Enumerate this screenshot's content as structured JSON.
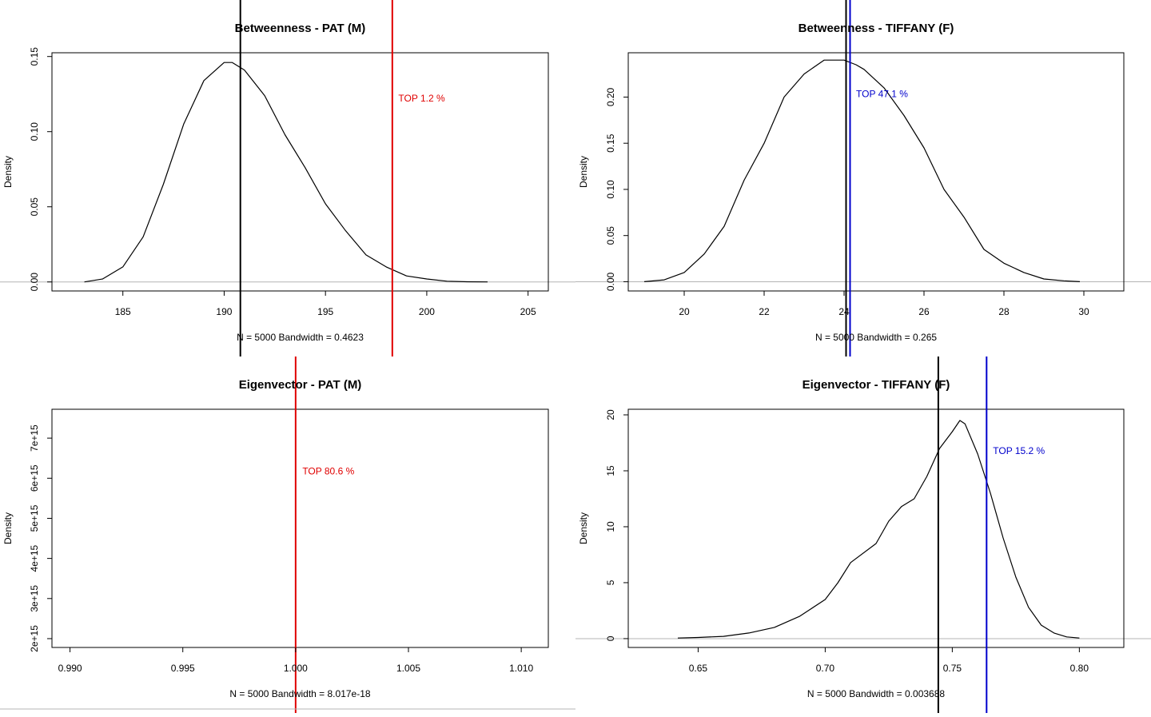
{
  "chart_data": [
    {
      "type": "line",
      "title": "Betweenness - PAT (M)",
      "xlabel": "N = 5000   Bandwidth = 0.4623",
      "ylabel": "Density",
      "xlim": [
        181.5,
        206
      ],
      "ylim": [
        -0.006,
        0.1525
      ],
      "xticks": [
        "185",
        "190",
        "195",
        "200",
        "205"
      ],
      "yticks": [
        "0.00",
        "0.05",
        "0.10",
        "0.15"
      ],
      "zero_line": true,
      "series": [
        {
          "name": "density",
          "color": "#000000",
          "x": [
            183.1,
            184,
            185,
            186,
            187,
            188,
            189,
            190,
            190.4,
            191,
            192,
            193,
            194,
            195,
            196,
            197,
            198,
            199,
            200,
            201,
            202,
            203
          ],
          "y": [
            0.0,
            0.002,
            0.01,
            0.03,
            0.065,
            0.105,
            0.134,
            0.146,
            0.146,
            0.141,
            0.124,
            0.098,
            0.076,
            0.052,
            0.034,
            0.018,
            0.01,
            0.004,
            0.002,
            0.0005,
            0.0001,
            0.0
          ]
        }
      ],
      "vlines": [
        {
          "name": "observed",
          "x": 190.8,
          "color": "#000000"
        },
        {
          "name": "reference",
          "x": 198.3,
          "color": "#e00000"
        }
      ],
      "annotation": {
        "text": "TOP 1.2 %",
        "x": 198.6,
        "y": 0.12,
        "color": "#e00000"
      }
    },
    {
      "type": "line",
      "title": "Betweenness - TIFFANY (F)",
      "xlabel": "N = 5000   Bandwidth = 0.265",
      "ylabel": "Density",
      "xlim": [
        18.6,
        31.0
      ],
      "ylim": [
        -0.01,
        0.248
      ],
      "xticks": [
        "20",
        "22",
        "24",
        "26",
        "28",
        "30"
      ],
      "yticks": [
        "0.00",
        "0.05",
        "0.10",
        "0.15",
        "0.20"
      ],
      "zero_line": true,
      "series": [
        {
          "name": "density",
          "color": "#000000",
          "x": [
            19,
            19.5,
            20,
            20.5,
            21,
            21.5,
            22,
            22.5,
            23,
            23.5,
            24,
            24.3,
            24.5,
            25,
            25.5,
            26,
            26.5,
            27,
            27.5,
            28,
            28.5,
            29,
            29.5,
            29.9
          ],
          "y": [
            0.0,
            0.002,
            0.01,
            0.03,
            0.06,
            0.11,
            0.15,
            0.2,
            0.225,
            0.24,
            0.24,
            0.235,
            0.23,
            0.21,
            0.18,
            0.145,
            0.1,
            0.07,
            0.035,
            0.02,
            0.01,
            0.003,
            0.001,
            0.0
          ]
        }
      ],
      "vlines": [
        {
          "name": "observed",
          "x": 24.05,
          "color": "#000000"
        },
        {
          "name": "reference",
          "x": 24.15,
          "color": "#0000cc"
        }
      ],
      "annotation": {
        "text": "TOP 47.1 %",
        "x": 24.3,
        "y": 0.2,
        "color": "#0000cc"
      }
    },
    {
      "type": "line",
      "title": "Eigenvector - PAT (M)",
      "xlabel": "N = 5000   Bandwidth = 8.017e-18",
      "ylabel": "Density",
      "xlim": [
        0.9892,
        1.0112
      ],
      "ylim": [
        1780000000000000.0,
        7720000000000000.0
      ],
      "xticks": [
        "0.990",
        "0.995",
        "1.000",
        "1.005",
        "1.010"
      ],
      "yticks": [
        "2e+15",
        "3e+15",
        "4e+15",
        "5e+15",
        "6e+15",
        "7e+15"
      ],
      "zero_line": false,
      "series": [],
      "vlines": [
        {
          "name": "reference",
          "x": 1.0,
          "color": "#e00000"
        }
      ],
      "annotation": {
        "text": "TOP 80.6 %",
        "x": 1.0003,
        "y": 6100000000000000.0,
        "color": "#e00000"
      }
    },
    {
      "type": "line",
      "title": "Eigenvector - TIFFANY (F)",
      "xlabel": "N = 5000   Bandwidth = 0.003688",
      "ylabel": "Density",
      "xlim": [
        0.6225,
        0.8175
      ],
      "ylim": [
        -0.79,
        20.5
      ],
      "xticks": [
        "0.65",
        "0.70",
        "0.75",
        "0.80"
      ],
      "yticks": [
        "0",
        "5",
        "10",
        "15",
        "20"
      ],
      "zero_line": true,
      "series": [
        {
          "name": "density",
          "color": "#000000",
          "x": [
            0.642,
            0.65,
            0.66,
            0.67,
            0.68,
            0.69,
            0.7,
            0.705,
            0.71,
            0.72,
            0.725,
            0.73,
            0.735,
            0.74,
            0.745,
            0.75,
            0.753,
            0.755,
            0.76,
            0.765,
            0.77,
            0.775,
            0.78,
            0.785,
            0.79,
            0.795,
            0.8
          ],
          "y": [
            0.05,
            0.1,
            0.2,
            0.5,
            1.0,
            2.0,
            3.5,
            5.0,
            6.8,
            8.5,
            10.5,
            11.8,
            12.5,
            14.5,
            17.0,
            18.5,
            19.5,
            19.2,
            16.5,
            13.0,
            9.0,
            5.5,
            2.8,
            1.2,
            0.5,
            0.15,
            0.05
          ]
        }
      ],
      "vlines": [
        {
          "name": "observed",
          "x": 0.7445,
          "color": "#000000"
        },
        {
          "name": "reference",
          "x": 0.7635,
          "color": "#0000cc"
        }
      ],
      "annotation": {
        "text": "TOP 15.2 %",
        "x": 0.766,
        "y": 16.5,
        "color": "#0000cc"
      }
    }
  ]
}
